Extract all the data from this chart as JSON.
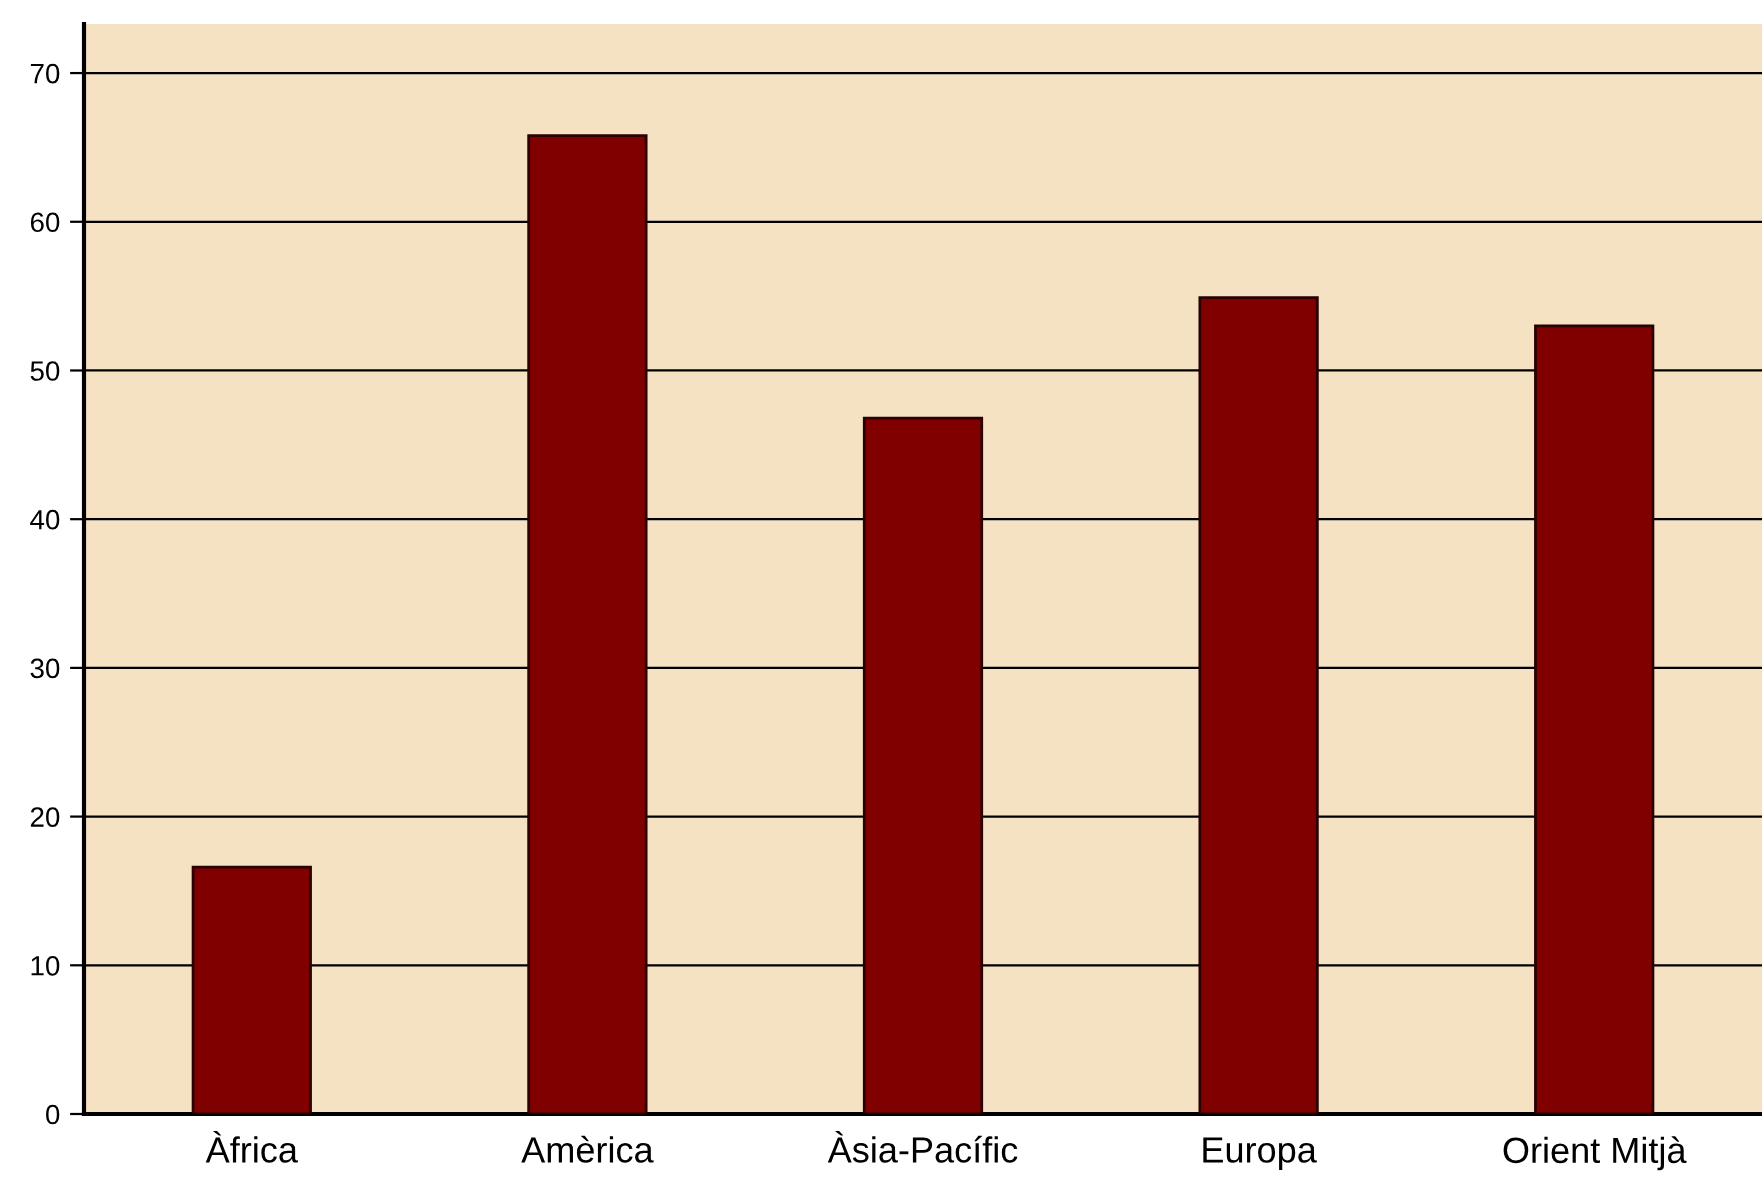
{
  "chart_data": {
    "type": "bar",
    "categories": [
      "Àfrica",
      "Amèrica",
      "Àsia-Pacífic",
      "Europa",
      "Orient Mitjà"
    ],
    "values": [
      16.6,
      65.8,
      46.8,
      54.9,
      53.0
    ],
    "color": "#800000",
    "ylim": [
      0,
      73.3
    ],
    "yticks": [
      0,
      10,
      20,
      30,
      40,
      50,
      60,
      70
    ],
    "grid": "y"
  }
}
